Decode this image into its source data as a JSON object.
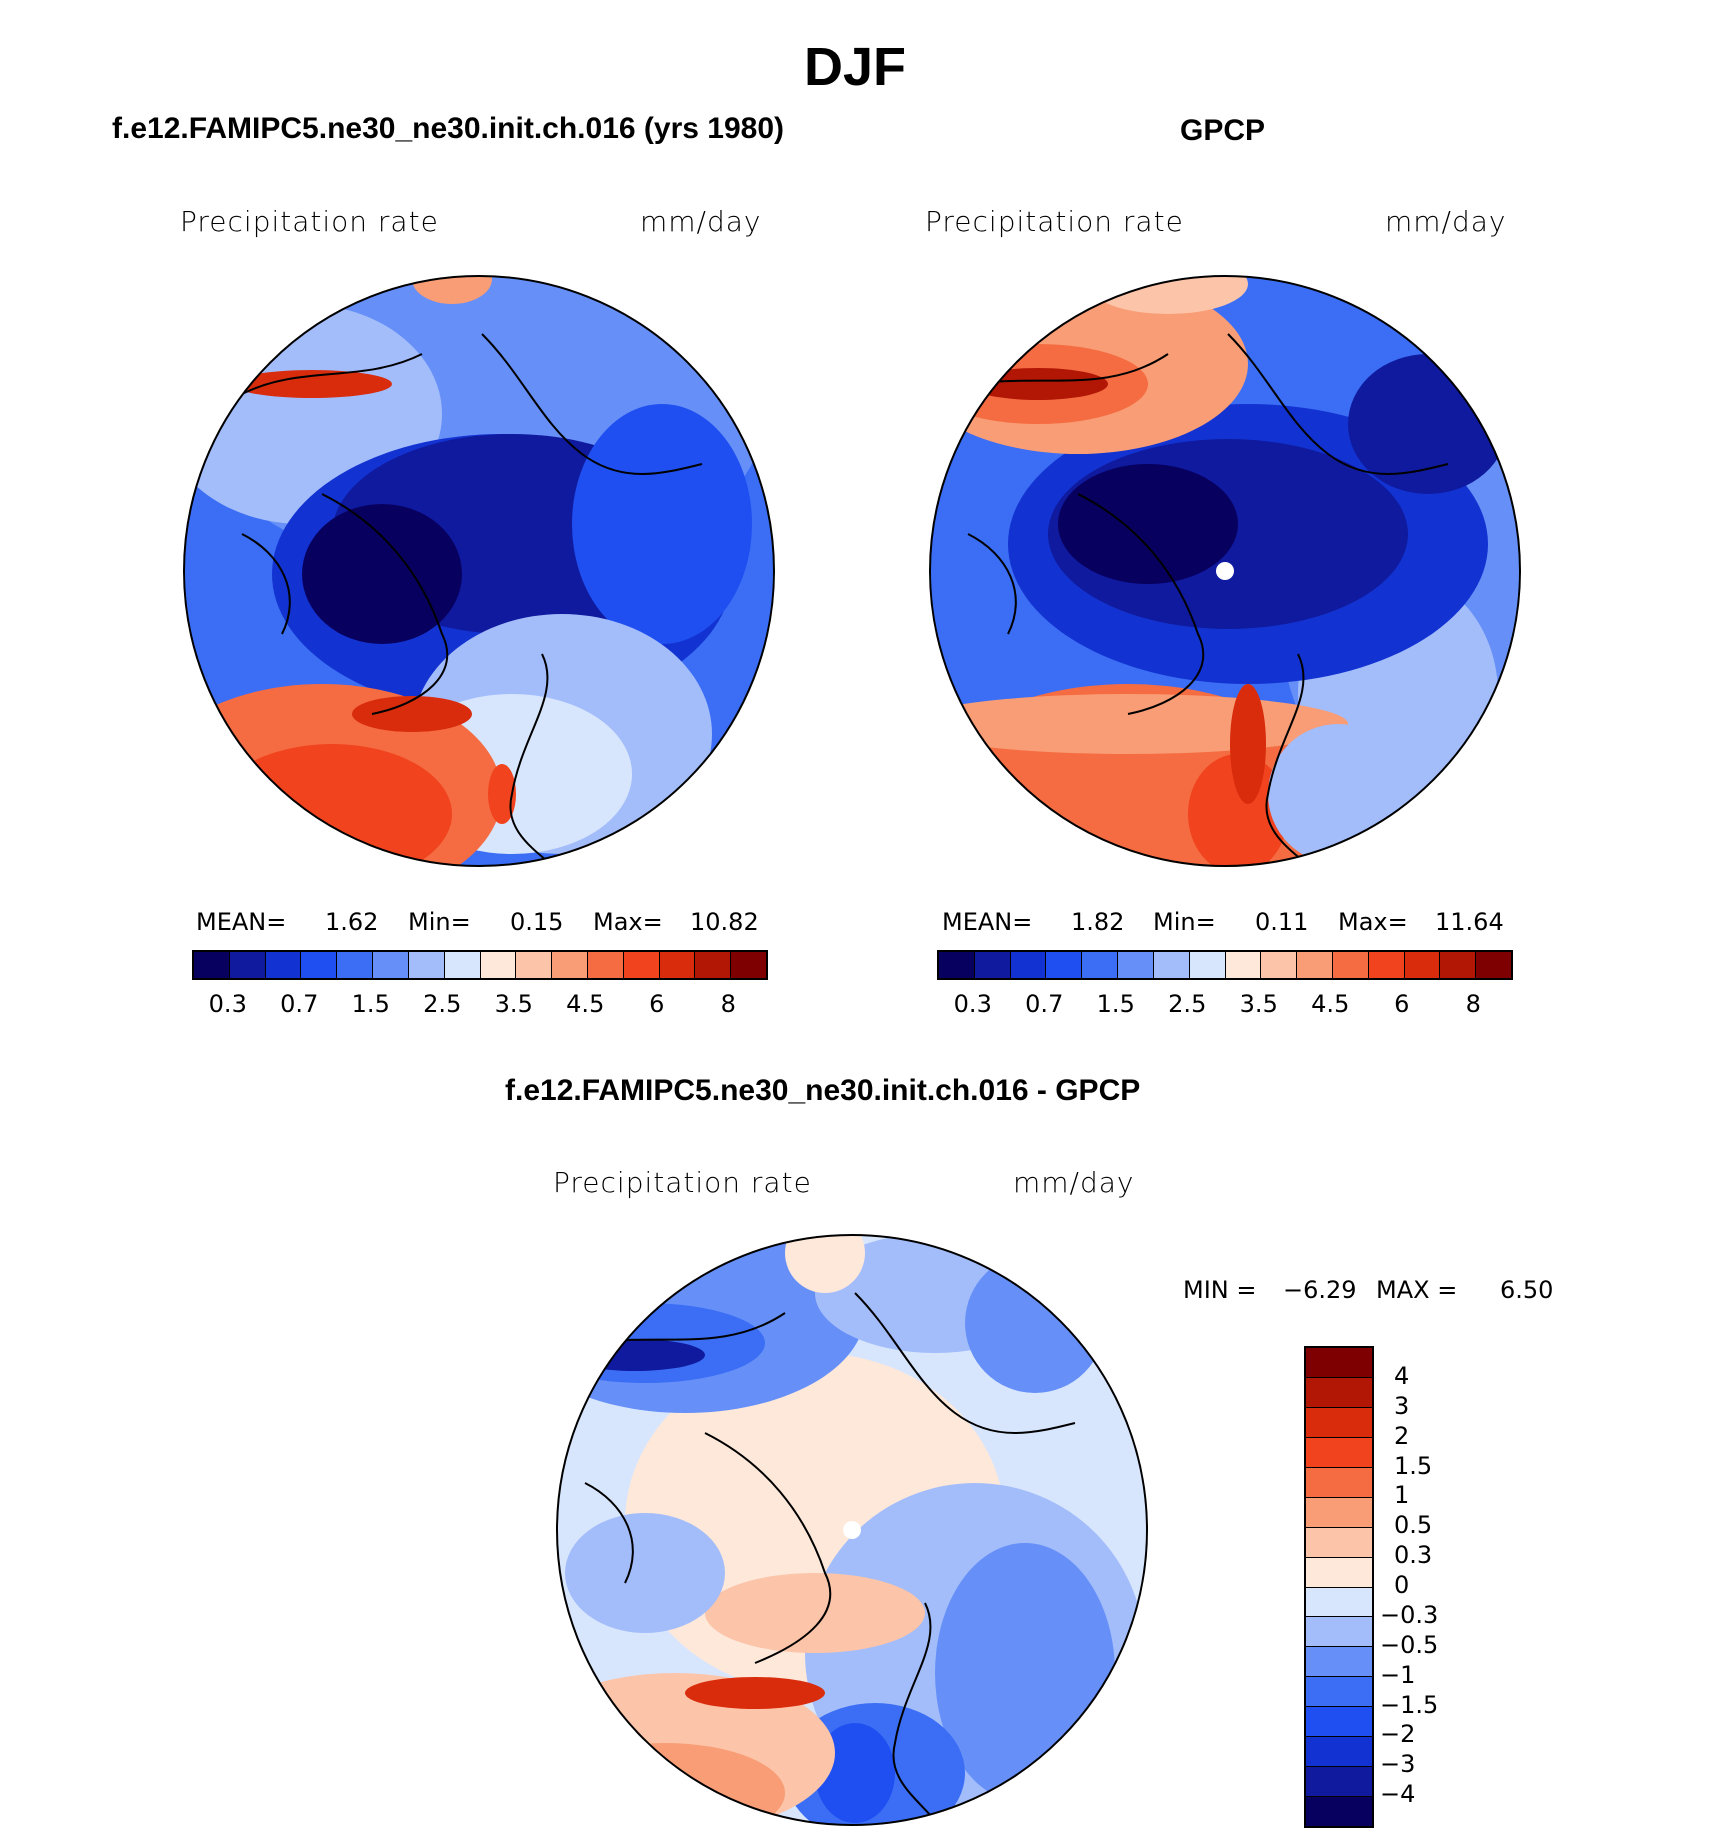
{
  "figure": {
    "title": "DJF"
  },
  "panel_model": {
    "subtitle": "f.e12.FAMIPC5.ne30_ne30.init.ch.016 (yrs 1980)",
    "variable": "Precipitation  rate",
    "units": "mm/day",
    "stats": {
      "mean_label": "MEAN=",
      "mean": "1.62",
      "min_label": "Min=",
      "min": "0.15",
      "max_label": "Max=",
      "max": "10.82"
    }
  },
  "panel_obs": {
    "subtitle": "GPCP",
    "variable": "Precipitation  rate",
    "units": "mm/day",
    "stats": {
      "mean_label": "MEAN=",
      "mean": "1.82",
      "min_label": "Min=",
      "min": "0.11",
      "max_label": "Max=",
      "max": "11.64"
    }
  },
  "panel_diff": {
    "subtitle": "f.e12.FAMIPC5.ne30_ne30.init.ch.016 - GPCP",
    "variable": "Precipitation  rate",
    "units": "mm/day",
    "stats": {
      "min_label": "MIN =",
      "min": "−6.29",
      "max_label": "MAX =",
      "max": "6.50"
    }
  },
  "colorbar_abs": {
    "colors": [
      "#08005f",
      "#0f1a9e",
      "#1233d1",
      "#1f4ff0",
      "#3b6ef5",
      "#6690f8",
      "#a3bdfb",
      "#d8e6fd",
      "#fde8da",
      "#fcc4a8",
      "#f89d75",
      "#f56c42",
      "#f0431e",
      "#d92c0c",
      "#b21706",
      "#7f0000"
    ],
    "tick_labels": [
      "0.3",
      "0.7",
      "1.5",
      "2.5",
      "3.5",
      "4.5",
      "6",
      "8"
    ]
  },
  "colorbar_diff": {
    "colors": [
      "#7f0000",
      "#b21706",
      "#d92c0c",
      "#f0431e",
      "#f56c42",
      "#f89d75",
      "#fcc4a8",
      "#fde8da",
      "#d8e6fd",
      "#a3bdfb",
      "#6690f8",
      "#3b6ef5",
      "#1f4ff0",
      "#1233d1",
      "#0f1a9e",
      "#08005f"
    ],
    "tick_labels": [
      "4",
      "3",
      "2",
      "1.5",
      "1",
      "0.5",
      "0.3",
      "0",
      "−0.3",
      "−0.5",
      "−1",
      "−1.5",
      "−2",
      "−3",
      "−4"
    ]
  }
}
